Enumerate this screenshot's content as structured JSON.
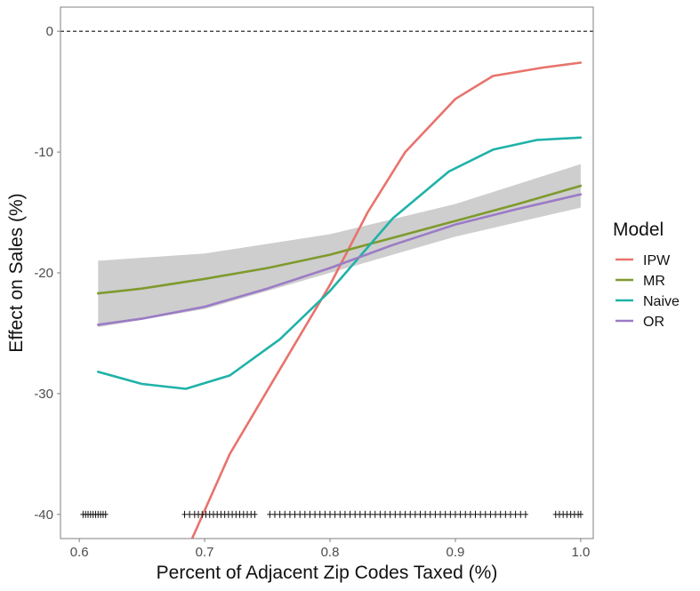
{
  "chart_data": {
    "type": "line",
    "title": "",
    "xlabel": "Percent of Adjacent Zip Codes Taxed (%)",
    "ylabel": "Effect on Sales (%)",
    "xlim": [
      0.585,
      1.01
    ],
    "ylim": [
      -42,
      2
    ],
    "xticks": [
      {
        "value": 0.6,
        "label": "0.6"
      },
      {
        "value": 0.7,
        "label": "0.7"
      },
      {
        "value": 0.8,
        "label": "0.8"
      },
      {
        "value": 0.9,
        "label": "0.9"
      },
      {
        "value": 1.0,
        "label": "1.0"
      }
    ],
    "yticks": [
      {
        "value": 0,
        "label": "0"
      },
      {
        "value": -10,
        "label": "-10"
      },
      {
        "value": -20,
        "label": "-20"
      },
      {
        "value": -30,
        "label": "-30"
      },
      {
        "value": -40,
        "label": "-40"
      }
    ],
    "grid": false,
    "reference_line": {
      "y": 0,
      "style": "dashed"
    },
    "legend": {
      "title": "Model",
      "position": "right"
    },
    "series": [
      {
        "name": "IPW",
        "color": "#e8736c",
        "x": [
          0.69,
          0.72,
          0.76,
          0.8,
          0.83,
          0.86,
          0.9,
          0.93,
          0.97,
          1.0
        ],
        "y": [
          -42,
          -35,
          -28,
          -21,
          -15,
          -10,
          -5.6,
          -3.7,
          -3.0,
          -2.6
        ]
      },
      {
        "name": "MR",
        "color": "#7f9a2e",
        "x": [
          0.615,
          0.65,
          0.7,
          0.75,
          0.8,
          0.85,
          0.9,
          0.95,
          1.0
        ],
        "y": [
          -21.7,
          -21.3,
          -20.5,
          -19.6,
          -18.5,
          -17.1,
          -15.7,
          -14.3,
          -12.8
        ]
      },
      {
        "name": "Naive",
        "color": "#1fb2a8",
        "x": [
          0.615,
          0.65,
          0.685,
          0.72,
          0.76,
          0.8,
          0.85,
          0.895,
          0.93,
          0.965,
          1.0
        ],
        "y": [
          -28.2,
          -29.2,
          -29.6,
          -28.5,
          -25.5,
          -21.5,
          -15.5,
          -11.6,
          -9.8,
          -9.0,
          -8.8
        ]
      },
      {
        "name": "OR",
        "color": "#9b7bc6",
        "x": [
          0.615,
          0.65,
          0.7,
          0.75,
          0.8,
          0.85,
          0.9,
          0.95,
          1.0
        ],
        "y": [
          -24.3,
          -23.8,
          -22.8,
          -21.3,
          -19.6,
          -17.7,
          -16.0,
          -14.7,
          -13.5
        ]
      }
    ],
    "confidence_band": {
      "series": "MR",
      "color": "#b3b3b3",
      "x": [
        0.615,
        0.7,
        0.8,
        0.9,
        1.0
      ],
      "lower": [
        -24.5,
        -23.0,
        -20.0,
        -17.0,
        -14.6
      ],
      "upper": [
        -19.0,
        -18.4,
        -16.8,
        -14.3,
        -11.0
      ]
    },
    "rug": {
      "y": -40,
      "x": [
        0.603,
        0.605,
        0.607,
        0.609,
        0.611,
        0.613,
        0.615,
        0.617,
        0.619,
        0.621,
        0.684,
        0.688,
        0.692,
        0.695,
        0.698,
        0.701,
        0.704,
        0.707,
        0.71,
        0.713,
        0.716,
        0.719,
        0.722,
        0.725,
        0.728,
        0.731,
        0.734,
        0.737,
        0.74,
        0.752,
        0.756,
        0.76,
        0.764,
        0.768,
        0.772,
        0.776,
        0.78,
        0.784,
        0.788,
        0.792,
        0.796,
        0.8,
        0.804,
        0.808,
        0.812,
        0.816,
        0.82,
        0.824,
        0.828,
        0.832,
        0.836,
        0.84,
        0.844,
        0.848,
        0.852,
        0.856,
        0.86,
        0.864,
        0.868,
        0.872,
        0.876,
        0.88,
        0.884,
        0.888,
        0.892,
        0.896,
        0.9,
        0.904,
        0.908,
        0.912,
        0.916,
        0.92,
        0.924,
        0.928,
        0.932,
        0.936,
        0.94,
        0.944,
        0.948,
        0.952,
        0.956,
        0.98,
        0.983,
        0.986,
        0.989,
        0.992,
        0.995,
        0.998,
        1.0
      ]
    }
  }
}
